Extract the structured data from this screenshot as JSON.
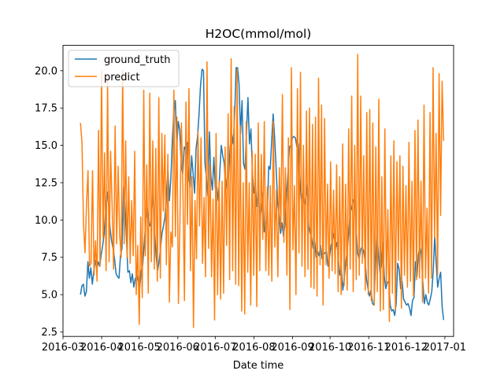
{
  "chart_data": {
    "type": "line",
    "title": "H2OC(mmol/mol)",
    "xlabel": "Date time",
    "ylabel": "",
    "x_start": "2016-03-15",
    "x_end": "2016-12-31",
    "xlim": [
      "2016-03-01",
      "2017-01-08"
    ],
    "ylim": [
      2.2,
      21.7
    ],
    "x_ticks": [
      "2016-03",
      "2016-04",
      "2016-05",
      "2016-06",
      "2016-07",
      "2016-08",
      "2016-09",
      "2016-10",
      "2016-11",
      "2016-12",
      "2017-01"
    ],
    "y_ticks": [
      "2.5",
      "5.0",
      "7.5",
      "10.0",
      "12.5",
      "15.0",
      "17.5",
      "20.0"
    ],
    "grid": false,
    "legend": "top-left",
    "series": [
      {
        "name": "ground_truth",
        "color": "#1f77b4",
        "values": [
          5.0,
          5.6,
          5.7,
          4.9,
          5.2,
          7.2,
          6.1,
          6.8,
          5.7,
          6.6,
          7.3,
          6.7,
          7.2,
          6.9,
          7.7,
          8.3,
          9.1,
          10.8,
          11.9,
          11.0,
          9.4,
          8.6,
          8.1,
          7.4,
          6.4,
          6.2,
          6.1,
          7.6,
          8.1,
          12.2,
          11.1,
          8.8,
          6.5,
          6.6,
          5.8,
          6.4,
          5.5,
          6.1,
          5.9,
          6.3,
          5.5,
          6.6,
          7.0,
          8.4,
          9.9,
          10.8,
          9.8,
          9.6,
          10.5,
          11.8,
          9.4,
          7.6,
          6.6,
          7.2,
          8.1,
          9.1,
          9.6,
          10.2,
          11.8,
          13.4,
          11.3,
          12.8,
          15.4,
          17.2,
          18.0,
          14.9,
          16.6,
          16.0,
          13.6,
          13.1,
          14.9,
          14.7,
          15.2,
          12.9,
          12.2,
          14.3,
          13.1,
          11.8,
          14.8,
          15.6,
          17.1,
          19.0,
          20.1,
          20.0,
          13.8,
          12.8,
          11.6,
          15.9,
          12.9,
          12.0,
          14.2,
          12.1,
          12.2,
          11.3,
          13.2,
          15.0,
          14.3,
          13.8,
          12.0,
          12.8,
          13.1,
          14.9,
          15.8,
          15.1,
          16.9,
          20.2,
          20.2,
          19.1,
          15.8,
          18.0,
          13.8,
          13.4,
          15.8,
          18.2,
          15.1,
          16.1,
          13.2,
          11.8,
          12.4,
          10.9,
          11.9,
          10.2,
          10.7,
          11.8,
          9.2,
          9.7,
          10.1,
          13.6,
          13.4,
          15.3,
          17.1,
          15.5,
          13.5,
          11.2,
          10.3,
          9.1,
          9.8,
          8.9,
          9.7,
          11.7,
          13.2,
          14.9,
          15.0,
          15.5,
          15.6,
          15.5,
          14.9,
          15.1,
          12.8,
          11.3,
          11.8,
          11.0,
          11.5,
          12.4,
          9.6,
          9.1,
          8.8,
          8.1,
          8.6,
          7.5,
          7.9,
          7.6,
          8.3,
          7.4,
          7.7,
          7.8,
          7.9,
          6.9,
          7.5,
          8.3,
          8.6,
          9.1,
          8.1,
          8.5,
          7.4,
          6.3,
          6.8,
          5.3,
          6.1,
          7.2,
          8.0,
          9.2,
          10.5,
          10.8,
          11.3,
          11.5,
          9.5,
          7.8,
          7.4,
          8.0,
          8.2,
          7.9,
          7.3,
          6.0,
          5.4,
          4.9,
          5.3,
          4.4,
          4.3,
          6.9,
          9.3,
          7.7,
          6.5,
          6.9,
          8.5,
          6.2,
          5.4,
          5.8,
          5.9,
          4.3,
          3.9,
          4.0,
          3.6,
          4.4,
          7.1,
          6.7,
          5.4,
          5.9,
          4.7,
          4.5,
          4.3,
          4.4,
          4.1,
          3.6,
          4.6,
          4.8,
          7.2,
          6.2,
          7.7,
          8.2,
          7.7,
          5.8,
          4.4,
          5.0,
          4.5,
          4.3,
          4.7,
          5.2,
          6.6,
          8.9,
          7.1,
          5.5,
          6.1,
          6.5,
          4.2,
          3.3
        ]
      },
      {
        "name": "predict",
        "color": "#ff7f0e",
        "values": [
          16.5,
          15.2,
          9.8,
          7.8,
          11.0,
          13.3,
          6.9,
          7.1,
          13.3,
          6.3,
          8.6,
          5.9,
          16.0,
          6.9,
          20.0,
          8.8,
          14.5,
          6.6,
          19.3,
          7.2,
          14.6,
          11.0,
          6.7,
          16.3,
          8.4,
          13.6,
          9.0,
          7.5,
          20.0,
          8.4,
          15.3,
          7.5,
          12.9,
          7.1,
          11.3,
          7.6,
          14.6,
          5.0,
          8.3,
          3.0,
          10.2,
          4.8,
          18.7,
          7.6,
          13.7,
          5.1,
          18.5,
          7.2,
          15.3,
          6.7,
          14.8,
          5.9,
          18.2,
          6.1,
          15.8,
          10.6,
          15.7,
          7.0,
          14.4,
          4.5,
          9.2,
          8.2,
          18.7,
          8.9,
          16.9,
          4.4,
          9.8,
          16.5,
          12.0,
          4.6,
          17.9,
          9.7,
          18.8,
          6.6,
          12.9,
          2.8,
          11.3,
          7.4,
          15.9,
          9.6,
          15.5,
          7.1,
          11.5,
          6.2,
          20.6,
          8.1,
          13.7,
          6.2,
          11.4,
          3.3,
          15.8,
          5.0,
          12.6,
          4.7,
          12.6,
          5.1,
          14.9,
          8.3,
          17.1,
          6.0,
          20.8,
          6.6,
          17.6,
          5.7,
          20.1,
          5.6,
          16.3,
          3.9,
          12.5,
          3.7,
          16.6,
          6.5,
          12.5,
          4.3,
          14.6,
          6.3,
          14.4,
          4.2,
          16.5,
          6.6,
          14.4,
          8.7,
          16.6,
          6.6,
          12.2,
          6.3,
          12.3,
          5.9,
          16.6,
          8.2,
          12.0,
          6.2,
          13.5,
          9.4,
          18.4,
          8.5,
          13.5,
          6.3,
          15.5,
          4.0,
          20.2,
          8.0,
          12.3,
          5.0,
          18.8,
          7.8,
          19.9,
          6.9,
          15.0,
          6.2,
          17.3,
          6.7,
          17.5,
          5.5,
          16.4,
          5.4,
          16.9,
          4.9,
          19.5,
          7.0,
          17.7,
          4.3,
          16.8,
          7.0,
          12.4,
          6.1,
          13.9,
          6.6,
          12.0,
          6.4,
          13.7,
          5.2,
          12.9,
          5.0,
          15.1,
          5.6,
          12.4,
          5.3,
          16.1,
          6.7,
          18.3,
          5.2,
          15.0,
          6.0,
          21.1,
          6.3,
          18.3,
          7.1,
          14.3,
          5.3,
          17.2,
          5.0,
          17.4,
          4.6,
          16.5,
          4.3,
          14.9,
          5.2,
          18.1,
          3.9,
          12.9,
          4.0,
          16.1,
          5.7,
          10.7,
          3.2,
          14.3,
          5.1,
          15.3,
          4.0,
          13.9,
          7.3,
          14.3,
          4.1,
          13.6,
          6.3,
          12.3,
          5.5,
          15.2,
          5.9,
          12.6,
          4.9,
          16.0,
          6.0,
          16.7,
          6.1,
          12.6,
          4.5,
          17.7,
          6.1,
          10.8,
          5.1,
          17.2,
          6.1,
          20.2,
          8.8,
          15.8,
          6.3,
          19.8,
          10.3,
          19.3,
          15.3
        ]
      }
    ]
  }
}
